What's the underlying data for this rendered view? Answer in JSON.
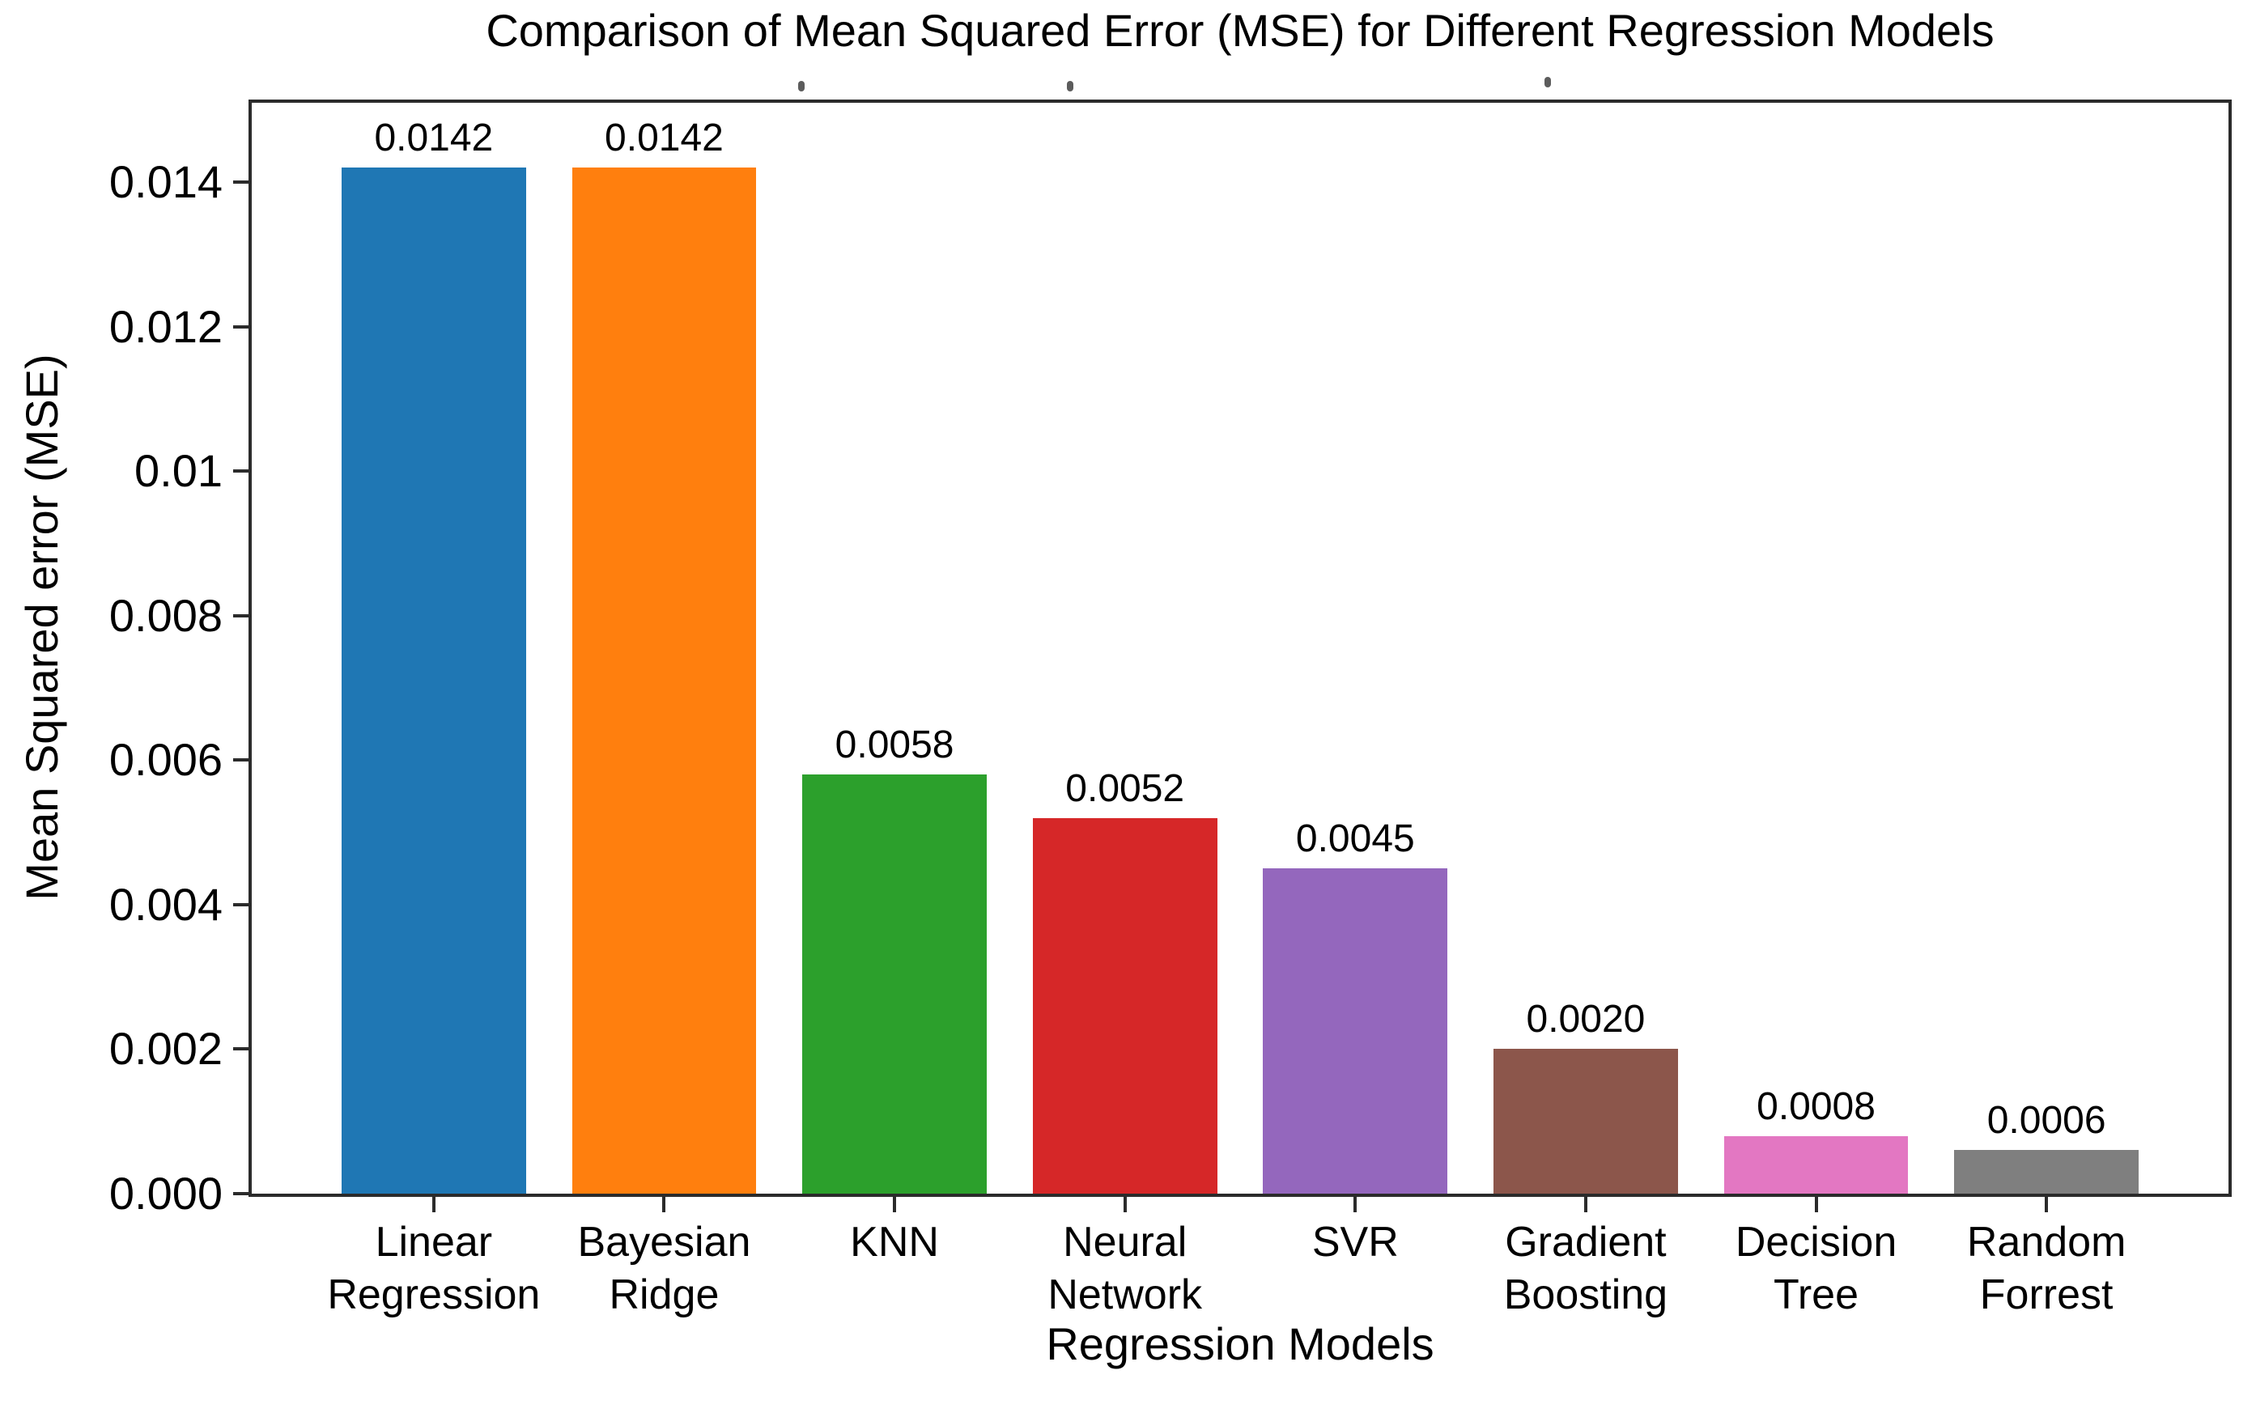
{
  "chart_data": {
    "type": "bar",
    "title": "Comparison of Mean Squared Error (MSE) for Different Regression Models",
    "xlabel": "Regression Models",
    "ylabel": "Mean Squared error (MSE)",
    "categories": [
      "Linear\nRegression",
      "Bayesian\nRidge",
      "KNN",
      "Neural\nNetwork",
      "SVR",
      "Gradient\nBoosting",
      "Decision\nTree",
      "Random\nForrest"
    ],
    "values": [
      0.0142,
      0.0142,
      0.0058,
      0.0052,
      0.0045,
      0.002,
      0.0008,
      0.0006
    ],
    "value_labels": [
      "0.0142",
      "0.0142",
      "0.0058",
      "0.0052",
      "0.0045",
      "0.0020",
      "0.0008",
      "0.0006"
    ],
    "bar_colors": [
      "#1f77b4",
      "#ff7f0e",
      "#2ca02c",
      "#d62728",
      "#9467bd",
      "#8c564b",
      "#e377c2",
      "#7f7f7f"
    ],
    "ytick_labels": [
      "0.000",
      "0.002",
      "0.004",
      "0.006",
      "0.008",
      "0.01",
      "0.012",
      "0.014"
    ],
    "ytick_values": [
      0,
      0.002,
      0.004,
      0.006,
      0.008,
      0.01,
      0.012,
      0.014
    ],
    "ylim": [
      0,
      0.0151
    ],
    "bar_width_units": 0.8,
    "x_margin_units": 0.79,
    "grid": false,
    "legend": null
  },
  "style": {
    "background": "#ffffff",
    "text_color": "#000000",
    "spine_color": "#2b2b2b"
  }
}
